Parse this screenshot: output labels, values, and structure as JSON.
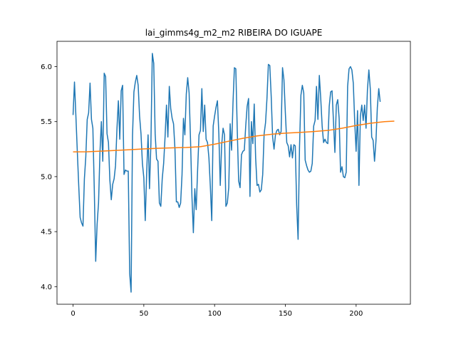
{
  "chart_data": {
    "type": "line",
    "title": "lai_gimms4g_m2_m2 RIBEIRA DO IGUAPE",
    "xlabel": "",
    "ylabel": "",
    "xlim": [
      -11.35,
      238.35
    ],
    "ylim": [
      3.84,
      6.23
    ],
    "grid": false,
    "x_ticks": [
      0,
      50,
      100,
      150,
      200
    ],
    "x_tick_labels": [
      "0",
      "50",
      "100",
      "150",
      "200"
    ],
    "y_ticks": [
      4.0,
      4.5,
      5.0,
      5.5,
      6.0
    ],
    "y_tick_labels": [
      "4.0",
      "4.5",
      "5.0",
      "5.5",
      "6.0"
    ],
    "series": [
      {
        "name": "",
        "color": "#1f77b4",
        "values": [
          5.56,
          5.86,
          5.55,
          5.23,
          4.92,
          4.63,
          4.58,
          4.55,
          4.98,
          5.18,
          5.52,
          5.58,
          5.85,
          5.52,
          5.44,
          4.88,
          4.23,
          4.57,
          4.76,
          5.22,
          5.5,
          5.14,
          5.94,
          5.91,
          5.39,
          5.31,
          4.97,
          4.79,
          4.93,
          4.98,
          5.1,
          5.43,
          5.69,
          5.34,
          5.78,
          5.83,
          5.02,
          5.06,
          5.05,
          5.05,
          4.12,
          3.95,
          5.37,
          5.77,
          5.86,
          5.92,
          5.83,
          5.55,
          5.39,
          5.12,
          4.99,
          4.6,
          5.03,
          5.38,
          4.89,
          5.3,
          6.12,
          6.03,
          5.39,
          5.16,
          5.14,
          4.76,
          4.73,
          4.98,
          5.12,
          5.36,
          5.65,
          5.36,
          5.82,
          5.62,
          5.53,
          5.48,
          5.25,
          4.77,
          4.77,
          4.72,
          4.76,
          5.02,
          5.53,
          5.38,
          5.75,
          5.9,
          5.76,
          5.33,
          4.82,
          4.49,
          4.89,
          4.7,
          5.06,
          5.38,
          5.42,
          5.8,
          5.41,
          5.65,
          5.34,
          5.31,
          5.17,
          4.91,
          4.6,
          5.46,
          5.55,
          5.63,
          5.69,
          5.39,
          4.92,
          5.29,
          5.44,
          5.38,
          4.73,
          4.76,
          4.9,
          5.48,
          5.24,
          5.67,
          5.99,
          5.98,
          5.43,
          4.96,
          4.9,
          5.2,
          5.23,
          5.24,
          5.46,
          5.64,
          5.71,
          4.82,
          5.5,
          5.3,
          5.66,
          5.17,
          4.92,
          4.93,
          4.86,
          4.88,
          5.02,
          5.39,
          5.49,
          5.71,
          6.02,
          6.01,
          5.73,
          5.36,
          5.25,
          5.38,
          5.42,
          5.43,
          5.38,
          5.41,
          5.99,
          5.88,
          5.58,
          5.31,
          5.28,
          5.18,
          5.29,
          5.17,
          5.29,
          5.28,
          4.74,
          4.43,
          5.27,
          5.74,
          5.83,
          5.76,
          5.15,
          5.1,
          5.06,
          5.04,
          5.05,
          5.12,
          5.46,
          5.51,
          5.82,
          5.52,
          5.92,
          5.71,
          5.46,
          5.31,
          5.34,
          5.31,
          5.3,
          5.64,
          5.77,
          5.78,
          5.5,
          5.22,
          5.65,
          5.7,
          5.53,
          5.04,
          5.09,
          5.0,
          4.99,
          5.04,
          5.82,
          5.98,
          6.0,
          5.97,
          5.85,
          5.5,
          5.23,
          5.6,
          4.92,
          5.55,
          5.65,
          5.51,
          5.65,
          5.44,
          5.79,
          5.97,
          5.8,
          5.36,
          5.33,
          5.14,
          5.32,
          5.63,
          5.8,
          5.68
        ]
      },
      {
        "name": "",
        "color": "#ff7f0e",
        "x": [
          0,
          10,
          20,
          30,
          40,
          50,
          60,
          70,
          80,
          90,
          100,
          110,
          120,
          130,
          140,
          150,
          160,
          170,
          180,
          190,
          200,
          210,
          220,
          227
        ],
        "values": [
          5.225,
          5.226,
          5.232,
          5.238,
          5.245,
          5.252,
          5.258,
          5.262,
          5.265,
          5.272,
          5.295,
          5.322,
          5.348,
          5.37,
          5.385,
          5.395,
          5.402,
          5.41,
          5.42,
          5.44,
          5.465,
          5.485,
          5.5,
          5.505
        ]
      }
    ]
  }
}
